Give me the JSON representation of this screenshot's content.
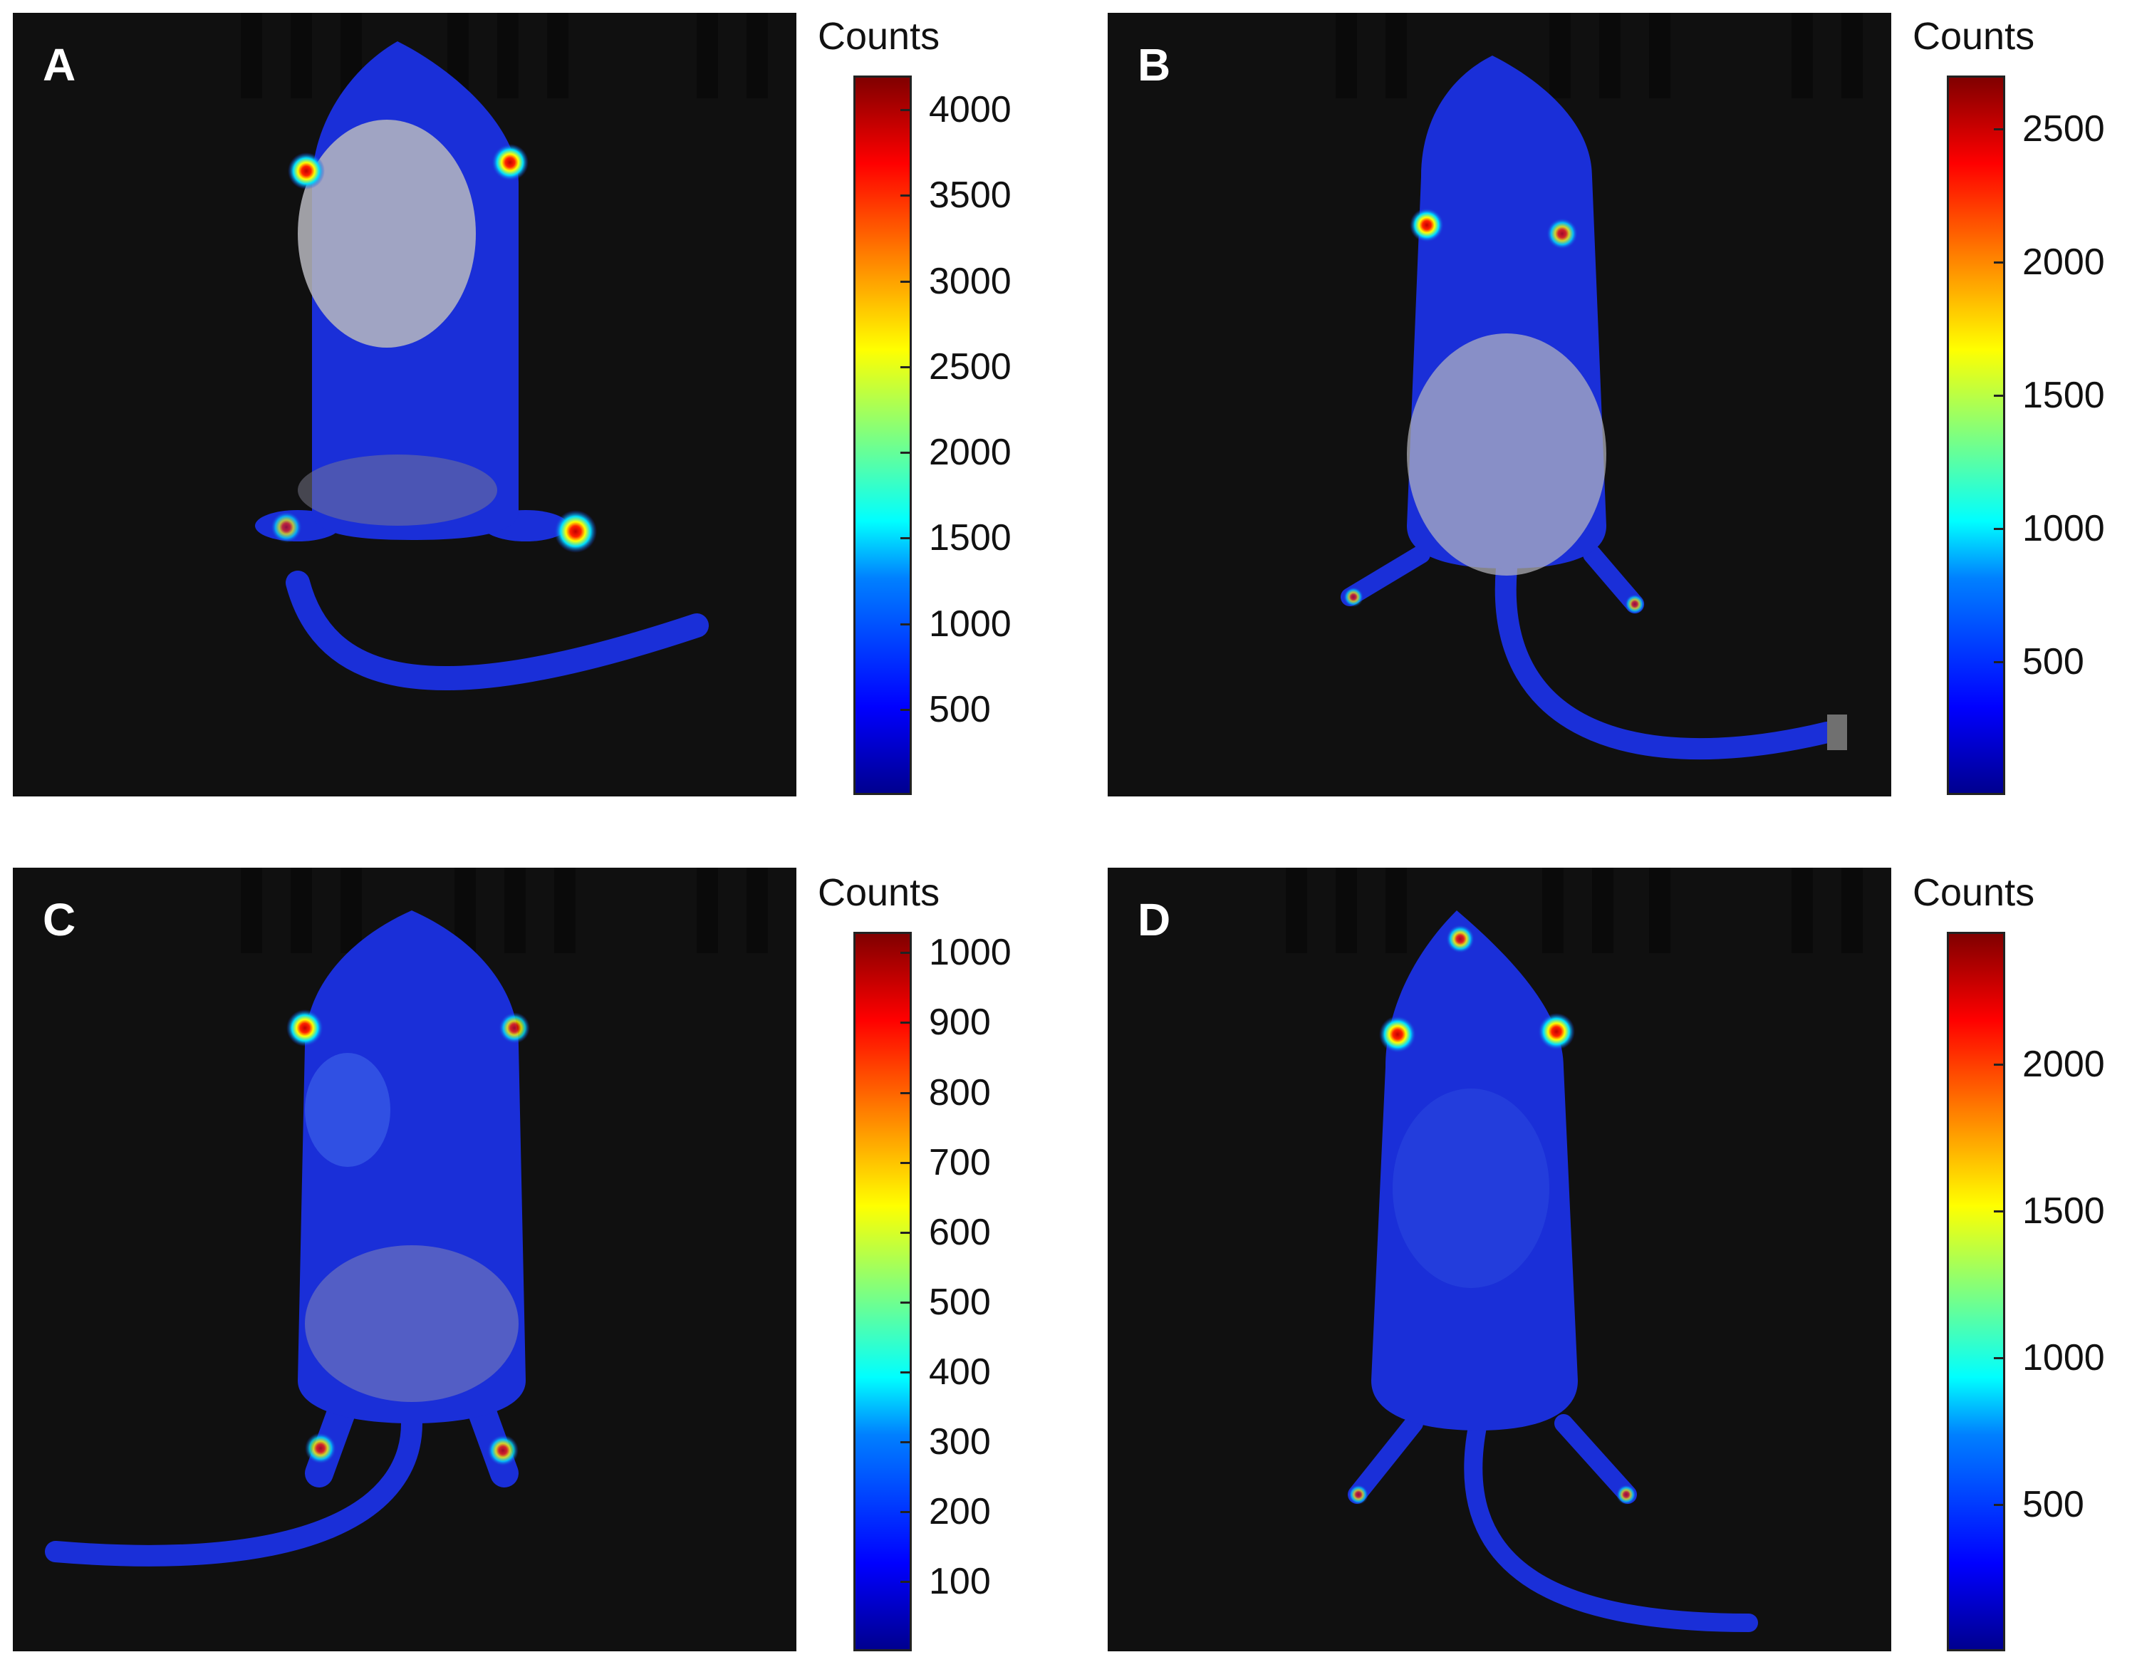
{
  "panels": [
    {
      "letter": "A",
      "colorbar": {
        "title": "Counts",
        "ticks": [
          "500",
          "1000",
          "1500",
          "2000",
          "2500",
          "3000",
          "3500",
          "4000"
        ],
        "max_value": 4200
      }
    },
    {
      "letter": "B",
      "colorbar": {
        "title": "Counts",
        "ticks": [
          "500",
          "1000",
          "1500",
          "2000",
          "2500"
        ],
        "max_value": 2700
      }
    },
    {
      "letter": "C",
      "colorbar": {
        "title": "Counts",
        "ticks": [
          "100",
          "200",
          "300",
          "400",
          "500",
          "600",
          "700",
          "800",
          "900",
          "1000"
        ],
        "max_value": 1030
      }
    },
    {
      "letter": "D",
      "colorbar": {
        "title": "Counts",
        "ticks": [
          "500",
          "1000",
          "1500",
          "2000"
        ],
        "max_value": 2450
      }
    }
  ],
  "colors": {
    "background": "#101010",
    "body_signal": "#1a2fd8",
    "hotspot_core": "#ff1a00",
    "colormap": "jet"
  }
}
